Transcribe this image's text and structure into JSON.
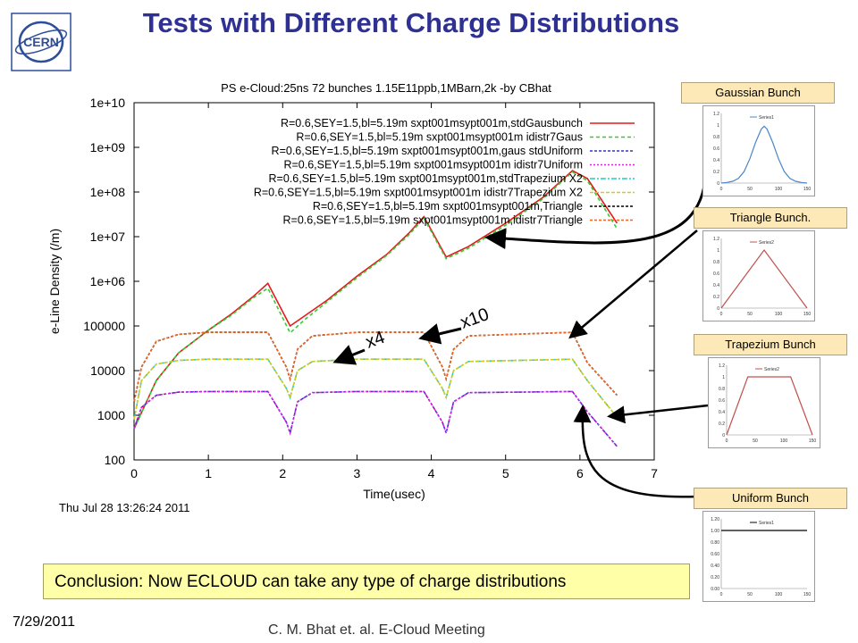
{
  "slide": {
    "title": "Tests with Different Charge Distributions",
    "conclusion": "Conclusion: Now ECLOUD can take any type of charge distributions",
    "date": "7/29/2011",
    "footer": "C. M. Bhat et. al. E-Cloud Meeting",
    "logo_text": "CERN"
  },
  "annotations": {
    "x4": "x4",
    "x10": "x10"
  },
  "bunch_labels": {
    "gaussian": "Gaussian Bunch",
    "triangle": "Triangle Bunch.",
    "trapezium": "Trapezium Bunch",
    "uniform": "Uniform Bunch"
  },
  "chart_data": [
    {
      "type": "line",
      "title": "PS e-Cloud:25ns 72 bunches 1.15E11ppb,1MBarn,2k -by CBhat",
      "xlabel": "Time(usec)",
      "ylabel": "e-Line Density (/m)",
      "timestamp": "Thu Jul 28 13:26:24 2011",
      "xlim": [
        0,
        7
      ],
      "ylim": [
        100,
        10000000000
      ],
      "yscale": "log",
      "x_ticks": [
        "0",
        "1",
        "2",
        "3",
        "4",
        "5",
        "6",
        "7"
      ],
      "y_ticks": [
        "100",
        "1000",
        "10000",
        "100000",
        "1e+06",
        "1e+07",
        "1e+08",
        "1e+09",
        "1e+10"
      ],
      "legend_position": "top-right",
      "series": [
        {
          "name": "R=0.6,SEY=1.5,bl=5.19m sxpt001msypt001m,stdGausbunch",
          "color": "#e41a1c",
          "dash": "solid",
          "points": [
            [
              0,
              500
            ],
            [
              0.3,
              6000
            ],
            [
              0.6,
              25000
            ],
            [
              1.0,
              80000
            ],
            [
              1.3,
              180000
            ],
            [
              1.6,
              450000
            ],
            [
              1.8,
              900000
            ],
            [
              2.1,
              100000
            ],
            [
              2.3,
              170000
            ],
            [
              2.6,
              380000
            ],
            [
              3.0,
              1300000
            ],
            [
              3.4,
              4000000
            ],
            [
              3.7,
              12000000
            ],
            [
              3.9,
              28000000
            ],
            [
              4.2,
              3500000
            ],
            [
              4.5,
              6000000
            ],
            [
              5.0,
              20000000
            ],
            [
              5.5,
              75000000
            ],
            [
              5.9,
              300000000
            ],
            [
              6.1,
              200000000
            ],
            [
              6.5,
              20000000
            ]
          ]
        },
        {
          "name": "R=0.6,SEY=1.5,bl=5.19m sxpt001msypt001m idistr7Gaus",
          "color": "#33cc33",
          "dash": "4,3",
          "points": [
            [
              0,
              500
            ],
            [
              0.3,
              6000
            ],
            [
              0.6,
              25000
            ],
            [
              1.0,
              80000
            ],
            [
              1.3,
              170000
            ],
            [
              1.6,
              420000
            ],
            [
              1.8,
              700000
            ],
            [
              2.1,
              70000
            ],
            [
              2.3,
              140000
            ],
            [
              2.6,
              350000
            ],
            [
              3.0,
              1200000
            ],
            [
              3.4,
              3800000
            ],
            [
              3.7,
              11000000
            ],
            [
              3.9,
              26000000
            ],
            [
              4.2,
              3200000
            ],
            [
              4.5,
              5500000
            ],
            [
              5.0,
              18000000
            ],
            [
              5.5,
              70000000
            ],
            [
              5.9,
              280000000
            ],
            [
              6.1,
              180000000
            ],
            [
              6.5,
              15000000
            ]
          ]
        },
        {
          "name": "R=0.6,SEY=1.5,bl=5.19m sxpt001msypt001m,gaus stdUniform",
          "color": "#3333cc",
          "dash": "3,2",
          "points": [
            [
              0,
              500
            ],
            [
              0.1,
              1500
            ],
            [
              0.3,
              2800
            ],
            [
              0.6,
              3300
            ],
            [
              1.0,
              3400
            ],
            [
              1.8,
              3400
            ],
            [
              2.05,
              700
            ],
            [
              2.1,
              400
            ],
            [
              2.2,
              2000
            ],
            [
              2.4,
              3200
            ],
            [
              3.0,
              3400
            ],
            [
              3.9,
              3400
            ],
            [
              4.15,
              700
            ],
            [
              4.2,
              400
            ],
            [
              4.3,
              2000
            ],
            [
              4.5,
              3200
            ],
            [
              5.9,
              3400
            ],
            [
              6.1,
              1200
            ],
            [
              6.5,
              200
            ]
          ]
        },
        {
          "name": "R=0.6,SEY=1.5,bl=5.19m sxpt001msypt001m idistr7Uniform",
          "color": "#dd22dd",
          "dash": "2,2",
          "points": [
            [
              0,
              500
            ],
            [
              0.1,
              1500
            ],
            [
              0.3,
              2800
            ],
            [
              0.6,
              3300
            ],
            [
              1.0,
              3400
            ],
            [
              1.8,
              3400
            ],
            [
              2.05,
              700
            ],
            [
              2.1,
              400
            ],
            [
              2.2,
              2000
            ],
            [
              2.4,
              3200
            ],
            [
              3.0,
              3400
            ],
            [
              3.9,
              3400
            ],
            [
              4.15,
              700
            ],
            [
              4.2,
              400
            ],
            [
              4.3,
              2000
            ],
            [
              4.5,
              3200
            ],
            [
              5.9,
              3400
            ],
            [
              6.1,
              1200
            ],
            [
              6.5,
              200
            ]
          ]
        },
        {
          "name": "R=0.6,SEY=1.5,bl=5.19m sxpt001msypt001m,stdTrapezium X2",
          "color": "#22cccc",
          "dash": "6,2,2,2",
          "points": [
            [
              0,
              800
            ],
            [
              0.1,
              6000
            ],
            [
              0.3,
              14000
            ],
            [
              0.6,
              17000
            ],
            [
              1.0,
              18000
            ],
            [
              1.8,
              18000
            ],
            [
              2.05,
              4000
            ],
            [
              2.1,
              2500
            ],
            [
              2.2,
              10000
            ],
            [
              2.4,
              16000
            ],
            [
              3.0,
              18000
            ],
            [
              3.9,
              18000
            ],
            [
              4.15,
              4000
            ],
            [
              4.2,
              2500
            ],
            [
              4.3,
              10000
            ],
            [
              4.5,
              16000
            ],
            [
              5.9,
              18000
            ],
            [
              6.1,
              6000
            ],
            [
              6.5,
              900
            ]
          ]
        },
        {
          "name": "R=0.6,SEY=1.5,bl=5.19m sxpt001msypt001m idistr7Trapezium X2",
          "color": "#cccc22",
          "dash": "4,2",
          "points": [
            [
              0,
              800
            ],
            [
              0.1,
              6000
            ],
            [
              0.3,
              14000
            ],
            [
              0.6,
              17000
            ],
            [
              1.0,
              18000
            ],
            [
              1.8,
              18000
            ],
            [
              2.05,
              4000
            ],
            [
              2.1,
              2500
            ],
            [
              2.2,
              10000
            ],
            [
              2.4,
              16000
            ],
            [
              3.0,
              18000
            ],
            [
              3.9,
              18000
            ],
            [
              4.15,
              4000
            ],
            [
              4.2,
              2500
            ],
            [
              4.3,
              10000
            ],
            [
              4.5,
              16000
            ],
            [
              5.9,
              18000
            ],
            [
              6.1,
              6000
            ],
            [
              6.5,
              900
            ]
          ]
        },
        {
          "name": "R=0.6,SEY=1.5,bl=5.19m sxpt001msypt001m,Triangle",
          "color": "#000000",
          "dash": "3,2",
          "points": [
            [
              0,
              2000
            ],
            [
              0.1,
              12000
            ],
            [
              0.3,
              45000
            ],
            [
              0.6,
              65000
            ],
            [
              1.0,
              72000
            ],
            [
              1.8,
              72000
            ],
            [
              2.05,
              12000
            ],
            [
              2.1,
              6500
            ],
            [
              2.2,
              30000
            ],
            [
              2.4,
              60000
            ],
            [
              3.0,
              72000
            ],
            [
              3.9,
              72000
            ],
            [
              4.15,
              12000
            ],
            [
              4.2,
              6500
            ],
            [
              4.3,
              30000
            ],
            [
              4.5,
              60000
            ],
            [
              5.9,
              72000
            ],
            [
              6.1,
              15000
            ],
            [
              6.5,
              2800
            ]
          ]
        },
        {
          "name": "R=0.6,SEY=1.5,bl=5.19m sxpt001msypt001m,idistr7Triangle",
          "color": "#ee6622",
          "dash": "3,2",
          "points": [
            [
              0,
              2000
            ],
            [
              0.1,
              12000
            ],
            [
              0.3,
              45000
            ],
            [
              0.6,
              65000
            ],
            [
              1.0,
              72000
            ],
            [
              1.8,
              72000
            ],
            [
              2.05,
              12000
            ],
            [
              2.1,
              6500
            ],
            [
              2.2,
              30000
            ],
            [
              2.4,
              60000
            ],
            [
              3.0,
              72000
            ],
            [
              3.9,
              72000
            ],
            [
              4.15,
              12000
            ],
            [
              4.2,
              6500
            ],
            [
              4.3,
              30000
            ],
            [
              4.5,
              60000
            ],
            [
              5.9,
              72000
            ],
            [
              6.1,
              15000
            ],
            [
              6.5,
              2800
            ]
          ]
        }
      ]
    },
    {
      "type": "line",
      "legend": "Series1",
      "x_ticks": [
        "0",
        "50",
        "100",
        "150"
      ],
      "y_ticks": [
        "0",
        "0.2",
        "0.4",
        "0.6",
        "0.8",
        "1",
        "1.2"
      ],
      "color": "#4a86c8",
      "series": [
        {
          "name": "Series1",
          "points": [
            [
              0,
              0
            ],
            [
              10,
              0.01
            ],
            [
              20,
              0.03
            ],
            [
              30,
              0.08
            ],
            [
              40,
              0.2
            ],
            [
              50,
              0.42
            ],
            [
              60,
              0.7
            ],
            [
              70,
              0.93
            ],
            [
              75,
              0.98
            ],
            [
              80,
              0.93
            ],
            [
              90,
              0.7
            ],
            [
              100,
              0.42
            ],
            [
              110,
              0.2
            ],
            [
              120,
              0.08
            ],
            [
              130,
              0.03
            ],
            [
              140,
              0.01
            ],
            [
              150,
              0
            ]
          ]
        }
      ],
      "xlim": [
        0,
        150
      ],
      "ylim": [
        0,
        1.2
      ]
    },
    {
      "type": "line",
      "legend": "Series2",
      "x_ticks": [
        "0",
        "50",
        "100",
        "150"
      ],
      "y_ticks": [
        "0",
        "0.2",
        "0.4",
        "0.6",
        "0.8",
        "1",
        "1.2"
      ],
      "color": "#c0504d",
      "series": [
        {
          "name": "Series2",
          "points": [
            [
              0,
              0
            ],
            [
              75,
              1
            ],
            [
              150,
              0
            ]
          ]
        }
      ],
      "xlim": [
        0,
        150
      ],
      "ylim": [
        0,
        1.2
      ]
    },
    {
      "type": "line",
      "legend": "Series2",
      "x_ticks": [
        "0",
        "50",
        "100",
        "150"
      ],
      "y_ticks": [
        "0",
        "0.2",
        "0.4",
        "0.6",
        "0.8",
        "1",
        "1.2"
      ],
      "color": "#c0504d",
      "series": [
        {
          "name": "Series2",
          "points": [
            [
              0,
              0
            ],
            [
              37,
              1
            ],
            [
              112,
              1
            ],
            [
              150,
              0
            ]
          ]
        }
      ],
      "xlim": [
        0,
        150
      ],
      "ylim": [
        0,
        1.2
      ]
    },
    {
      "type": "line",
      "legend": "Series1",
      "x_ticks": [
        "0",
        "50",
        "100",
        "150"
      ],
      "y_ticks": [
        "0.00",
        "0.20",
        "0.40",
        "0.60",
        "0.80",
        "1.00",
        "1.20"
      ],
      "color": "#000000",
      "series": [
        {
          "name": "Series1",
          "points": [
            [
              0,
              1
            ],
            [
              150,
              1
            ]
          ]
        }
      ],
      "xlim": [
        0,
        150
      ],
      "ylim": [
        0,
        1.2
      ]
    }
  ]
}
